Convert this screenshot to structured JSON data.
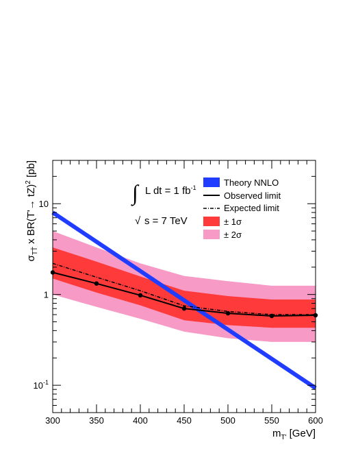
{
  "chart_data": {
    "type": "line",
    "x_axis": {
      "label": "m",
      "label_sub": "T'",
      "label_unit": " [GeV]",
      "range": [
        300,
        600
      ],
      "ticks": [
        300,
        350,
        400,
        450,
        500,
        550,
        600
      ],
      "tick_labels": [
        "300",
        "350",
        "400",
        "450",
        "500",
        "550",
        "600"
      ],
      "scale": "linear"
    },
    "y_axis": {
      "scale": "log",
      "range": [
        0.05,
        30
      ],
      "ticks": [
        0.1,
        1,
        10
      ],
      "tick_labels": [
        {
          "base": "10",
          "exp": "-1"
        },
        {
          "base": "1",
          "exp": ""
        },
        {
          "base": "10",
          "exp": ""
        }
      ],
      "label_parts": {
        "sigma": "σ",
        "sigma_sub": "TT̄",
        "middle": " x BR(T'",
        "arrow": "→",
        "after_arrow": " tZ)",
        "power": "2",
        "unit": " [pb]"
      }
    },
    "grid": false,
    "legend_position": "top-right",
    "legend": [
      {
        "key": "theory",
        "label": "Theory NNLO"
      },
      {
        "key": "observed",
        "label": "Observed limit"
      },
      {
        "key": "expected",
        "label": "Expected limit"
      },
      {
        "key": "band1",
        "label": "± 1σ"
      },
      {
        "key": "band2",
        "label": "± 2σ"
      }
    ],
    "annotations": {
      "lumi_integral": "∫",
      "lumi_text": "L dt = 1 fb",
      "lumi_exp": "-1",
      "sqrt_symbol": "√",
      "sqrt_text": "s = 7 TeV"
    },
    "colors": {
      "theory": "#1f3cff",
      "band1": "#ff3a3a",
      "band2": "#f79bc6",
      "observed": "#000000",
      "expected": "#000000"
    },
    "x": [
      300,
      350,
      400,
      450,
      500,
      550,
      600
    ],
    "series": [
      {
        "key": "observed",
        "name": "Observed limit",
        "values": [
          1.75,
          1.32,
          0.98,
          0.7,
          0.62,
          0.58,
          0.59
        ],
        "markers": true
      },
      {
        "key": "expected",
        "name": "Expected limit",
        "values": [
          2.2,
          1.55,
          1.1,
          0.75,
          0.65,
          0.6,
          0.6
        ]
      },
      {
        "key": "band1_low",
        "values": [
          1.5,
          1.05,
          0.76,
          0.52,
          0.46,
          0.43,
          0.43
        ]
      },
      {
        "key": "band1_high",
        "values": [
          3.3,
          2.3,
          1.58,
          1.1,
          0.96,
          0.88,
          0.88
        ]
      },
      {
        "key": "band2_low",
        "values": [
          1.0,
          0.73,
          0.54,
          0.39,
          0.33,
          0.3,
          0.3
        ]
      },
      {
        "key": "band2_high",
        "values": [
          5.0,
          3.3,
          2.2,
          1.6,
          1.4,
          1.25,
          1.25
        ]
      }
    ],
    "theory": {
      "name": "Theory NNLO",
      "x": [
        300,
        600
      ],
      "values": [
        8.0,
        0.093
      ]
    }
  }
}
